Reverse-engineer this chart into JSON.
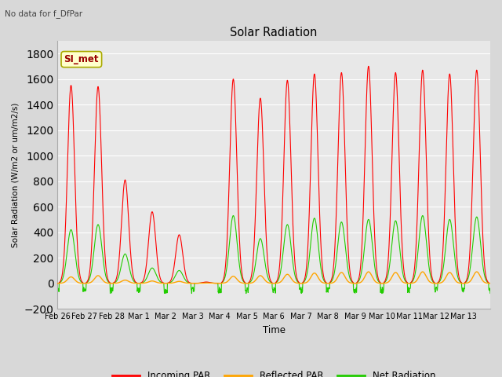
{
  "title": "Solar Radiation",
  "subtitle": "No data for f_DfPar",
  "xlabel": "Time",
  "ylabel": "Solar Radiation (W/m2 or um/m2/s)",
  "ylim": [
    -200,
    1900
  ],
  "yticks": [
    -200,
    0,
    200,
    400,
    600,
    800,
    1000,
    1200,
    1400,
    1600,
    1800
  ],
  "xtick_labels": [
    "Feb 26",
    "Feb 27",
    "Feb 28",
    "Mar 1",
    "Mar 2",
    "Mar 3",
    "Mar 4",
    "Mar 5",
    "Mar 6",
    "Mar 7",
    "Mar 8",
    "Mar 9",
    "Mar 10",
    "Mar 11",
    "Mar 12",
    "Mar 13"
  ],
  "n_days": 16,
  "legend_label": "SI_met",
  "colors": {
    "incoming": "#ff0000",
    "reflected": "#ffa500",
    "net": "#22cc00",
    "fig_bg": "#d8d8d8",
    "plot_bg": "#e8e8e8",
    "grid": "#ffffff"
  },
  "legend_entries": [
    "Incoming PAR",
    "Reflected PAR",
    "Net Radiation"
  ],
  "incoming_peaks": [
    1550,
    1540,
    810,
    560,
    380,
    10,
    1600,
    1450,
    1590,
    1640,
    1650,
    1700,
    1650,
    1670,
    1640,
    1670
  ],
  "net_peaks": [
    420,
    460,
    230,
    120,
    100,
    5,
    530,
    350,
    460,
    510,
    480,
    500,
    490,
    530,
    500,
    520
  ],
  "reflected_peaks": [
    50,
    60,
    25,
    18,
    15,
    2,
    55,
    60,
    70,
    80,
    85,
    90,
    85,
    90,
    85,
    90
  ]
}
